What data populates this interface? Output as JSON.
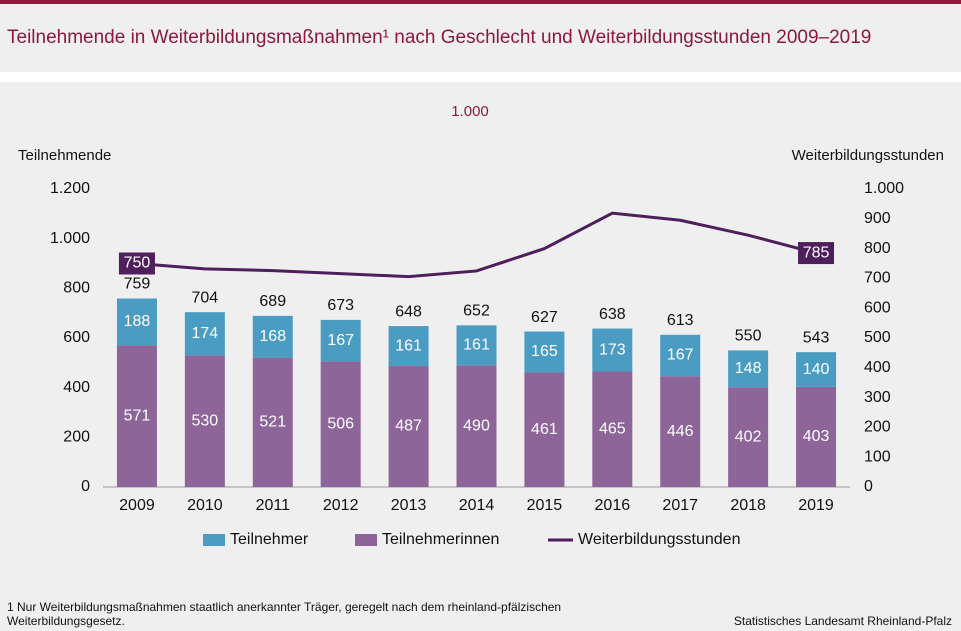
{
  "chart_data": {
    "type": "bar-line",
    "title": "Teilnehmende in Weiterbildungsmaßnahmen¹ nach Geschlecht und Weiterbildungsstunden 2009–2019",
    "annotation": "1.000",
    "y_label": "Teilnehmende",
    "y2_label": "Weiterbildungsstunden",
    "categories": [
      "2009",
      "2010",
      "2011",
      "2012",
      "2013",
      "2014",
      "2015",
      "2016",
      "2017",
      "2018",
      "2019"
    ],
    "series": [
      {
        "name": "Teilnehmer",
        "color": "#4b9cc2",
        "values": [
          188,
          174,
          168,
          167,
          161,
          161,
          165,
          173,
          167,
          148,
          140
        ]
      },
      {
        "name": "Teilnehmerinnen",
        "color": "#8d6598",
        "values": [
          571,
          530,
          521,
          506,
          487,
          490,
          461,
          465,
          446,
          402,
          403
        ]
      },
      {
        "name": "Weiterbildungsstunden",
        "color": "#4e1f5b",
        "axis": "y2",
        "values": [
          750,
          732,
          726,
          716,
          706,
          725,
          800,
          919,
          895,
          845,
          785
        ],
        "value_labels": [
          "750",
          null,
          null,
          null,
          null,
          null,
          null,
          null,
          null,
          null,
          "785"
        ]
      }
    ],
    "totals": [
      759,
      704,
      689,
      673,
      648,
      652,
      627,
      638,
      613,
      550,
      543
    ],
    "ylim": [
      0,
      1200
    ],
    "yticks": [
      0,
      200,
      400,
      600,
      800,
      {
        "value": 1000,
        "label": "1.000"
      },
      {
        "value": 1200,
        "label": "1.200"
      }
    ],
    "y2lim": [
      0,
      1000
    ],
    "y2ticks": [
      0,
      100,
      200,
      300,
      400,
      500,
      600,
      700,
      800,
      900,
      {
        "value": 1000,
        "label": "1.000"
      }
    ],
    "footnote": [
      "1 Nur Weiterbildungsmaßnahmen  staatlich anerkannter Träger,  geregelt  nach dem rheinland-pfälzischen",
      "Weiterbildungsgesetz."
    ],
    "source": "Statistisches Landesamt Rheinland-Pfalz"
  }
}
